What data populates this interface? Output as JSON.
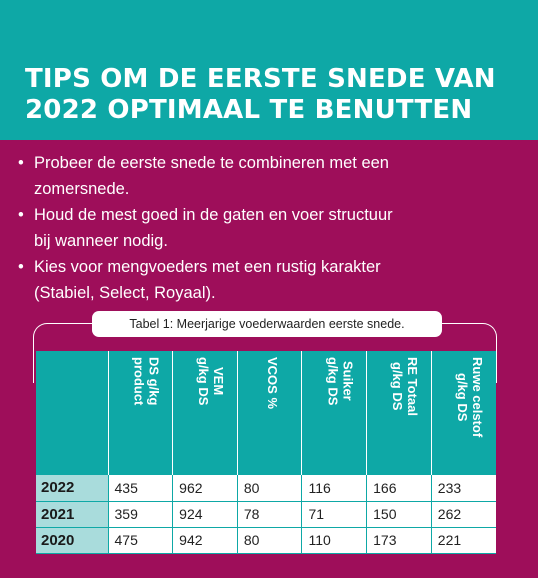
{
  "title": {
    "line1": "TIPS OM DE EERSTE SNEDE VAN",
    "line2": "2022 OPTIMAAL TE BENUTTEN"
  },
  "tips": [
    {
      "bullet": "•",
      "line1": "Probeer de eerste snede te combineren met een",
      "line2": "zomersnede."
    },
    {
      "bullet": "•",
      "line1": "Houd de mest goed in de gaten en voer structuur",
      "line2": "bij wanneer nodig."
    },
    {
      "bullet": "•",
      "line1": "Kies voor mengvoeders met een rustig karakter",
      "line2": "(Stabiel, Select, Royaal)."
    }
  ],
  "table": {
    "caption": "Tabel 1: Meerjarige voederwaarden eerste snede.",
    "columns": [
      {
        "line1": "",
        "line2": ""
      },
      {
        "line1": "DS g/kg",
        "line2": "product"
      },
      {
        "line1": "VEM",
        "line2": "g/kg DS"
      },
      {
        "line1": "VCOS %",
        "line2": ""
      },
      {
        "line1": "Suiker",
        "line2": "g/kg DS"
      },
      {
        "line1": "RE Totaal",
        "line2": "g/kg DS"
      },
      {
        "line1": "Ruwe celstof",
        "line2": "g/kg DS"
      }
    ],
    "rows": [
      [
        "2022",
        "435",
        "962",
        "80",
        "116",
        "166",
        "233"
      ],
      [
        "2021",
        "359",
        "924",
        "78",
        "71",
        "150",
        "262"
      ],
      [
        "2020",
        "475",
        "942",
        "80",
        "110",
        "173",
        "221"
      ]
    ]
  },
  "colors": {
    "background": "#9e0e5a",
    "accent": "#0ea8a6",
    "year_cell": "#a9dcdc"
  }
}
